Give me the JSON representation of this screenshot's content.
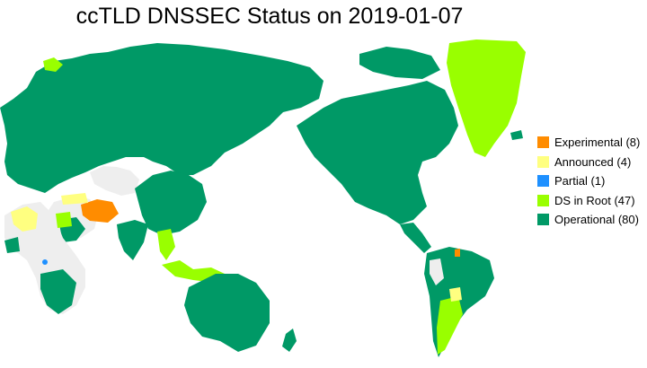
{
  "title": "ccTLD DNSSEC Status on 2019-01-07",
  "legend": [
    {
      "label": "Experimental (8)",
      "color": "#ff8c00"
    },
    {
      "label": "Announced (4)",
      "color": "#ffff80"
    },
    {
      "label": "Partial (1)",
      "color": "#1e90ff"
    },
    {
      "label": "DS in Root (47)",
      "color": "#99ff00"
    },
    {
      "label": "Operational (80)",
      "color": "#009966"
    }
  ],
  "colors": {
    "no_data": "#eeeeee",
    "experimental": "#ff8c00",
    "announced": "#ffff80",
    "partial": "#1e90ff",
    "ds_in_root": "#99ff00",
    "operational": "#009966"
  }
}
